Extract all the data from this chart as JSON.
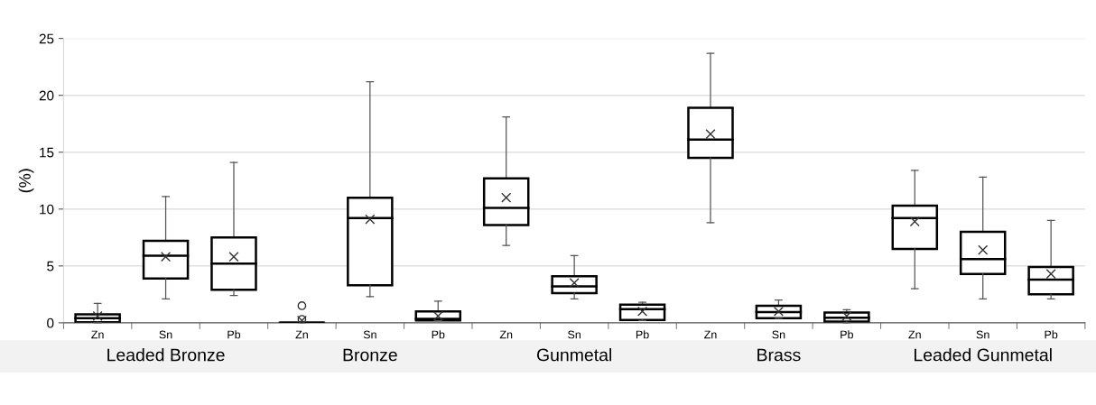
{
  "chart_data": {
    "type": "box",
    "ylabel": "(%)",
    "categories": [
      "Zn",
      "Sn",
      "Pb",
      "Zn",
      "Sn",
      "Pb",
      "Zn",
      "Sn",
      "Pb",
      "Zn",
      "Sn",
      "Pb",
      "Zn",
      "Sn",
      "Pb"
    ],
    "ylim": [
      0,
      25
    ],
    "yticks": [
      0,
      5,
      10,
      15,
      20,
      25
    ],
    "grid": "y",
    "annotations": [
      "Leaded Bronze",
      "Bronze",
      "Gunmetal",
      "Brass",
      "Leaded Gunmetal"
    ],
    "boxes": [
      {
        "low": 0,
        "q1": 0.05,
        "median": 0.4,
        "q3": 0.75,
        "high": 1.7,
        "mean": 0.6
      },
      {
        "low": 2.1,
        "q1": 3.9,
        "median": 5.9,
        "q3": 7.2,
        "high": 11.1,
        "mean": 5.8
      },
      {
        "low": 2.4,
        "q1": 2.9,
        "median": 5.2,
        "q3": 7.5,
        "high": 14.1,
        "mean": 5.8
      },
      {
        "low": 0,
        "q1": 0,
        "median": 0,
        "q3": 0,
        "high": 0,
        "mean": 0.2,
        "outliers": [
          1.5,
          0.3
        ]
      },
      {
        "low": 2.3,
        "q1": 3.3,
        "median": 9.2,
        "q3": 11.0,
        "high": 21.2,
        "mean": 9.1
      },
      {
        "low": 0.2,
        "q1": 0.2,
        "median": 0.35,
        "q3": 1.0,
        "high": 1.9,
        "mean": 0.6
      },
      {
        "low": 6.8,
        "q1": 8.6,
        "median": 10.1,
        "q3": 12.7,
        "high": 18.1,
        "mean": 11.0
      },
      {
        "low": 2.1,
        "q1": 2.6,
        "median": 3.2,
        "q3": 4.1,
        "high": 5.9,
        "mean": 3.5
      },
      {
        "low": 0.2,
        "q1": 0.25,
        "median": 1.2,
        "q3": 1.6,
        "high": 1.8,
        "mean": 1.0
      },
      {
        "low": 8.8,
        "q1": 14.5,
        "median": 16.1,
        "q3": 18.9,
        "high": 23.7,
        "mean": 16.6
      },
      {
        "low": 0.4,
        "q1": 0.4,
        "median": 0.95,
        "q3": 1.5,
        "high": 2.0,
        "mean": 1.0
      },
      {
        "low": 0,
        "q1": 0.1,
        "median": 0.45,
        "q3": 0.9,
        "high": 1.15,
        "mean": 0.6
      },
      {
        "low": 3.0,
        "q1": 6.5,
        "median": 9.2,
        "q3": 10.3,
        "high": 13.4,
        "mean": 8.9
      },
      {
        "low": 2.1,
        "q1": 4.3,
        "median": 5.6,
        "q3": 8.0,
        "high": 12.8,
        "mean": 6.4
      },
      {
        "low": 2.1,
        "q1": 2.5,
        "median": 3.8,
        "q3": 4.9,
        "high": 9.0,
        "mean": 4.3
      }
    ]
  }
}
